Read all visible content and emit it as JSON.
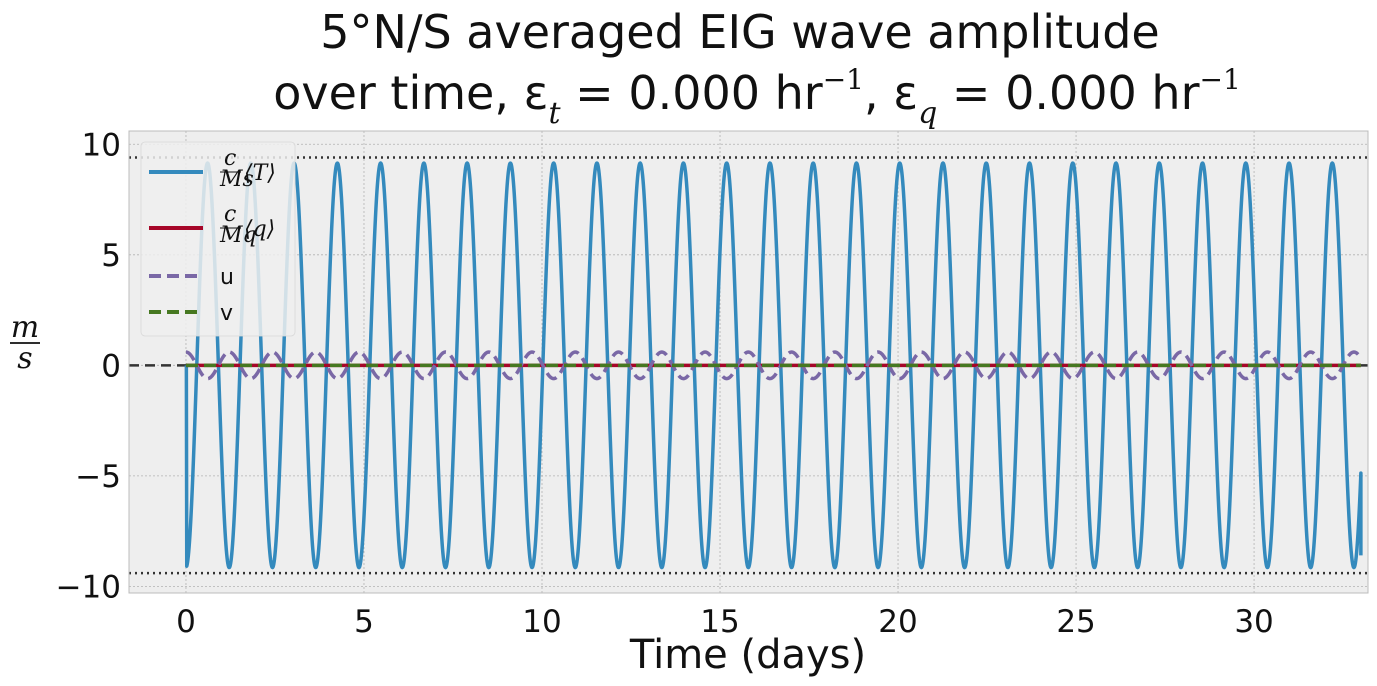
{
  "chart_data": {
    "type": "line",
    "title_line1": "5°N/S averaged EIG wave amplitude",
    "title_line2_prefix": "over time, ε",
    "title_eps_t_sub": "t",
    "title_eps_t_value": " = 0.000 hr",
    "title_exp": "−1",
    "title_sep": ",  ε",
    "title_eps_q_sub": "q",
    "title_eps_q_value": " = 0.000 hr",
    "xlabel": "Time (days)",
    "ylabel_num": "m",
    "ylabel_den": "s",
    "xlim": [
      -1.6,
      33.2
    ],
    "ylim": [
      -10.3,
      10.6
    ],
    "xticks": [
      0,
      5,
      10,
      15,
      20,
      25,
      30
    ],
    "xtick_labels": [
      "0",
      "5",
      "10",
      "15",
      "20",
      "25",
      "30"
    ],
    "yticks": [
      -10,
      -5,
      0,
      5,
      10
    ],
    "ytick_labels": [
      "−10",
      "−5",
      "0",
      "5",
      "10"
    ],
    "grid": true,
    "legend_placement": "upper-left",
    "reference_lines": [
      {
        "y": 9.4,
        "style": "dotted",
        "color": "#333333"
      },
      {
        "y": -9.4,
        "style": "dotted",
        "color": "#333333"
      },
      {
        "y": 0,
        "style": "dashed",
        "color": "#333333"
      }
    ],
    "x_end": 33,
    "series": [
      {
        "name": "c/M_s ⟨T⟩",
        "legend_frac_num": "c",
        "legend_frac_den": "Ms",
        "legend_bracket": "⟨T⟩",
        "color": "#348ABD",
        "dash": "solid",
        "amplitude": 9.15,
        "period_days": 1.215,
        "phase": -1.5708,
        "end_value": -8.6
      },
      {
        "name": "c/M_q ⟨q⟩",
        "legend_frac_num": "c",
        "legend_frac_den": "Mq",
        "legend_bracket": "⟨q⟩",
        "color": "#A60628",
        "dash": "solid",
        "amplitude": 0.0,
        "period_days": 1.215,
        "phase": 0
      },
      {
        "name": "u",
        "legend_label": "u",
        "color": "#7A68A6",
        "dash": "dashed",
        "amplitude": 0.6,
        "period_days": 1.215,
        "phase": 1.5708
      },
      {
        "name": "v",
        "legend_label": "v",
        "color": "#467821",
        "dash": "dashed",
        "amplitude": 0.0,
        "period_days": 1.215,
        "phase": 0
      }
    ]
  },
  "colors": {
    "axes_background": "#EEEEEE",
    "grid": "#B2B2B2",
    "axes_edge": "#BCBCBC"
  }
}
